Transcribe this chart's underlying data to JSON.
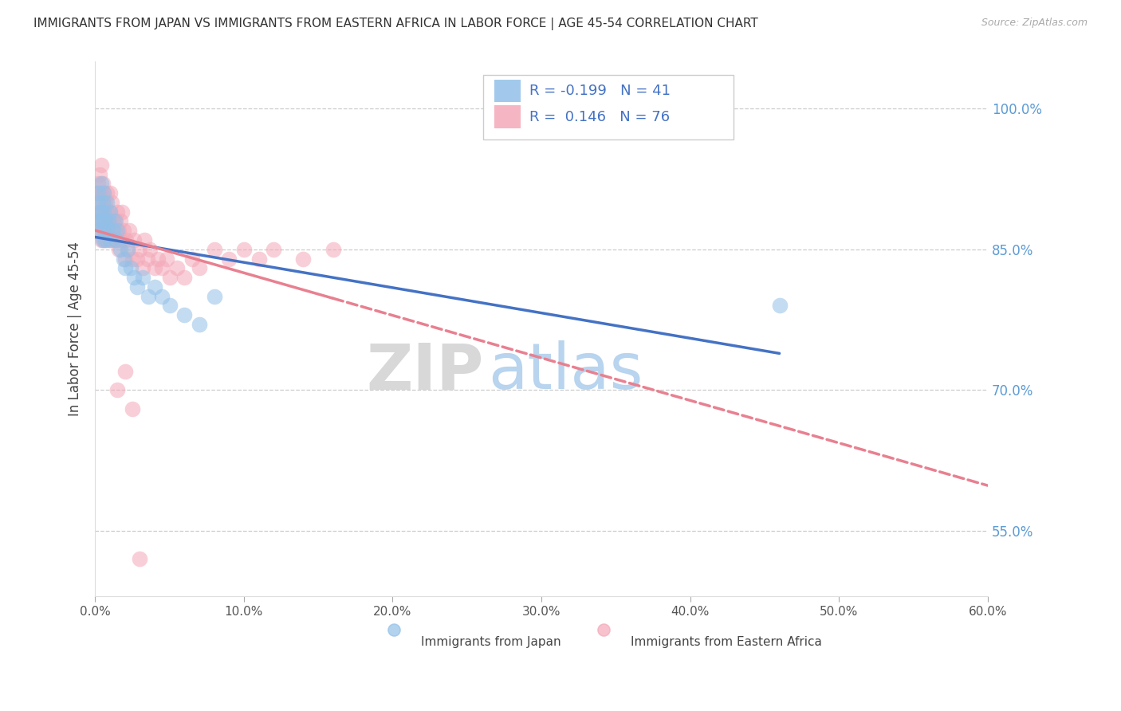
{
  "title": "IMMIGRANTS FROM JAPAN VS IMMIGRANTS FROM EASTERN AFRICA IN LABOR FORCE | AGE 45-54 CORRELATION CHART",
  "source": "Source: ZipAtlas.com",
  "ylabel": "In Labor Force | Age 45-54",
  "y_ticks": [
    "100.0%",
    "85.0%",
    "70.0%",
    "55.0%"
  ],
  "y_tick_vals": [
    1.0,
    0.85,
    0.7,
    0.55
  ],
  "x_tick_positions": [
    0.0,
    0.1,
    0.2,
    0.3,
    0.4,
    0.5,
    0.6
  ],
  "x_tick_labels": [
    "0.0%",
    "10.0%",
    "20.0%",
    "30.0%",
    "40.0%",
    "50.0%",
    "60.0%"
  ],
  "x_range": [
    0.0,
    0.6
  ],
  "y_range": [
    0.48,
    1.05
  ],
  "legend_japan_R": -0.199,
  "legend_japan_N": 41,
  "legend_africa_R": 0.146,
  "legend_africa_N": 76,
  "color_japan": "#92c0e8",
  "color_africa": "#f4a8b8",
  "japan_x": [
    0.001,
    0.002,
    0.002,
    0.003,
    0.003,
    0.004,
    0.004,
    0.004,
    0.005,
    0.005,
    0.005,
    0.006,
    0.006,
    0.006,
    0.007,
    0.007,
    0.008,
    0.008,
    0.009,
    0.01,
    0.01,
    0.012,
    0.013,
    0.014,
    0.015,
    0.017,
    0.019,
    0.02,
    0.022,
    0.024,
    0.026,
    0.028,
    0.032,
    0.036,
    0.04,
    0.045,
    0.05,
    0.06,
    0.07,
    0.08,
    0.46
  ],
  "japan_y": [
    0.88,
    0.9,
    0.91,
    0.87,
    0.89,
    0.88,
    0.92,
    0.89,
    0.86,
    0.9,
    0.88,
    0.91,
    0.87,
    0.89,
    0.88,
    0.86,
    0.9,
    0.87,
    0.88,
    0.86,
    0.89,
    0.87,
    0.88,
    0.86,
    0.87,
    0.85,
    0.84,
    0.83,
    0.85,
    0.83,
    0.82,
    0.81,
    0.82,
    0.8,
    0.81,
    0.8,
    0.79,
    0.78,
    0.77,
    0.8,
    0.79
  ],
  "africa_x": [
    0.001,
    0.001,
    0.002,
    0.002,
    0.002,
    0.003,
    0.003,
    0.003,
    0.004,
    0.004,
    0.004,
    0.004,
    0.005,
    0.005,
    0.005,
    0.005,
    0.006,
    0.006,
    0.006,
    0.007,
    0.007,
    0.007,
    0.008,
    0.008,
    0.008,
    0.009,
    0.009,
    0.01,
    0.01,
    0.01,
    0.011,
    0.011,
    0.012,
    0.012,
    0.013,
    0.014,
    0.015,
    0.015,
    0.016,
    0.016,
    0.017,
    0.018,
    0.018,
    0.019,
    0.02,
    0.021,
    0.022,
    0.023,
    0.025,
    0.026,
    0.028,
    0.03,
    0.032,
    0.033,
    0.035,
    0.037,
    0.04,
    0.042,
    0.045,
    0.048,
    0.05,
    0.055,
    0.06,
    0.065,
    0.07,
    0.08,
    0.09,
    0.1,
    0.11,
    0.12,
    0.14,
    0.16,
    0.015,
    0.02,
    0.025,
    0.03
  ],
  "africa_y": [
    0.89,
    0.91,
    0.87,
    0.9,
    0.92,
    0.88,
    0.91,
    0.93,
    0.86,
    0.89,
    0.91,
    0.94,
    0.87,
    0.9,
    0.88,
    0.92,
    0.86,
    0.89,
    0.91,
    0.87,
    0.9,
    0.88,
    0.86,
    0.89,
    0.91,
    0.88,
    0.87,
    0.86,
    0.89,
    0.91,
    0.87,
    0.9,
    0.88,
    0.86,
    0.87,
    0.88,
    0.86,
    0.89,
    0.87,
    0.85,
    0.88,
    0.86,
    0.89,
    0.87,
    0.84,
    0.86,
    0.85,
    0.87,
    0.84,
    0.86,
    0.84,
    0.85,
    0.83,
    0.86,
    0.84,
    0.85,
    0.83,
    0.84,
    0.83,
    0.84,
    0.82,
    0.83,
    0.82,
    0.84,
    0.83,
    0.85,
    0.84,
    0.85,
    0.84,
    0.85,
    0.84,
    0.85,
    0.7,
    0.72,
    0.68,
    0.52
  ]
}
